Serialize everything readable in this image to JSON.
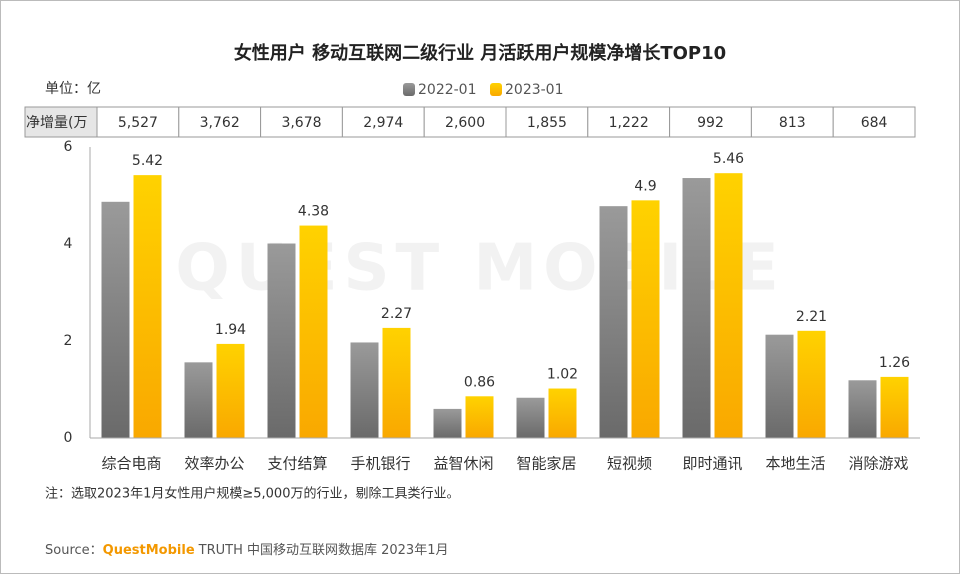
{
  "chart_data": {
    "type": "bar",
    "title": "女性用户 移动互联网二级行业 月活跃用户规模净增长TOP10",
    "unit": "单位：亿",
    "watermark": "QUEST MOBILE",
    "categories": [
      "综合电商",
      "效率办公",
      "支付结算",
      "手机银行",
      "益智休闲",
      "智能家居",
      "短视频",
      "即时通讯",
      "本地生活",
      "消除游戏"
    ],
    "series": [
      {
        "name": "2022-01",
        "color": "#888888",
        "values": [
          4.87,
          1.56,
          4.01,
          1.97,
          0.6,
          0.83,
          4.78,
          5.36,
          2.13,
          1.19
        ]
      },
      {
        "name": "2023-01",
        "color": "#fcc400",
        "values": [
          5.42,
          1.94,
          4.38,
          2.27,
          0.86,
          1.02,
          4.9,
          5.46,
          2.21,
          1.26
        ]
      }
    ],
    "ylim": [
      0,
      6
    ],
    "yticks": [
      0,
      2,
      4,
      6
    ],
    "grid": false,
    "table": {
      "label": "净增量(万",
      "values": [
        5527,
        3762,
        3678,
        2974,
        2600,
        1855,
        1222,
        992,
        813,
        684
      ],
      "value_labels": [
        "5,527",
        "3,762",
        "3,678",
        "2,974",
        "2,600",
        "1,855",
        "1,222",
        "992",
        "813",
        "684"
      ]
    },
    "note": "注：选取2023年1月女性用户规模≥5,000万的行业，剔除工具类行业。",
    "source": {
      "prefix": "Source：",
      "brand": "QuestMobile",
      "text": "TRUTH 中国移动互联网数据库 2023年1月"
    }
  }
}
